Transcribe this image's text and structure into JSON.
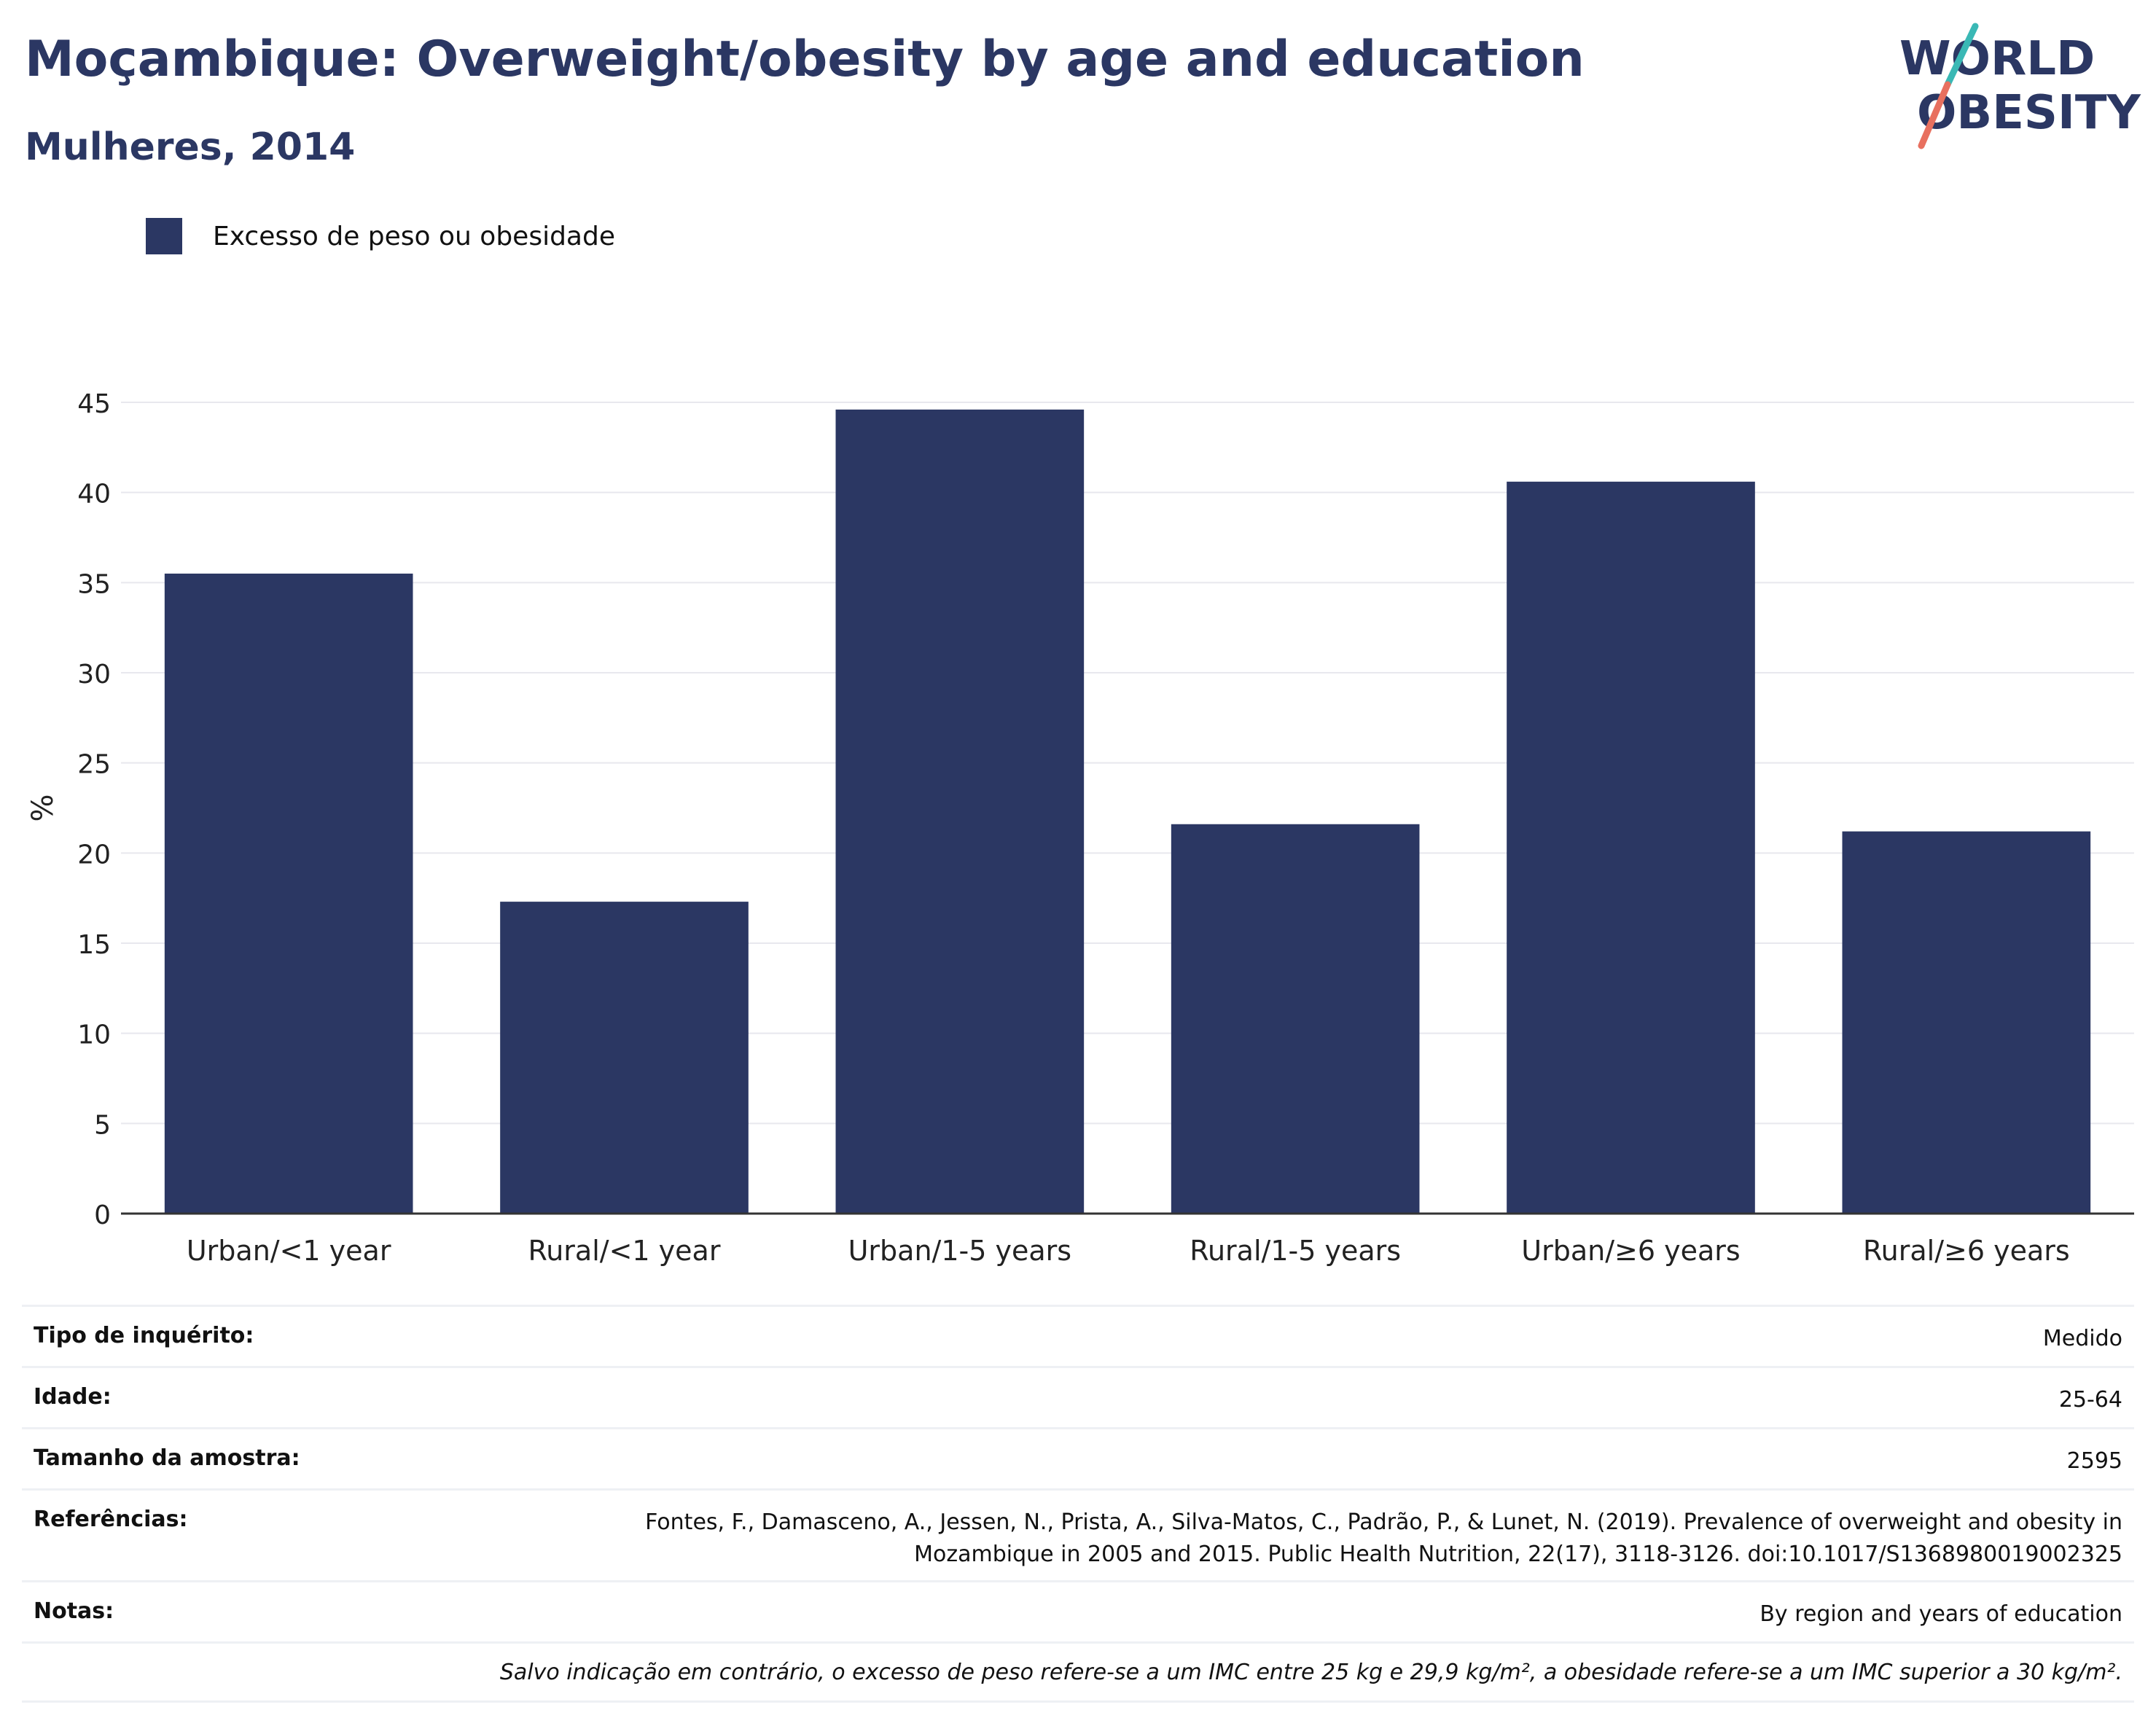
{
  "header": {
    "title": "Moçambique: Overweight/obesity by age and education",
    "subtitle": "Mulheres, 2014"
  },
  "logo": {
    "line1": "WORLD",
    "line2": "OBESITY"
  },
  "colors": {
    "bar": "#2b3763",
    "title": "#2b3763",
    "grid": "#e8e8ee",
    "logo_teal": "#3ab8b5",
    "logo_coral": "#e8705f"
  },
  "chart_data": {
    "type": "bar",
    "categories": [
      "Urban/<1 year",
      "Rural/<1 year",
      "Urban/1-5 years",
      "Rural/1-5 years",
      "Urban/≥6 years",
      "Rural/≥6 years"
    ],
    "series": [
      {
        "name": "Excesso de peso ou obesidade",
        "values": [
          35.5,
          17.3,
          44.6,
          21.6,
          40.6,
          21.2
        ]
      }
    ],
    "ylabel": "%",
    "ylim": [
      0,
      45
    ],
    "yticks": [
      0,
      5,
      10,
      15,
      20,
      25,
      30,
      35,
      40,
      45
    ],
    "grid": true,
    "legend": "top-left"
  },
  "info": {
    "survey_type_label": "Tipo de inquérito:",
    "survey_type_value": "Medido",
    "age_label": "Idade:",
    "age_value": "25-64",
    "sample_label": "Tamanho da amostra:",
    "sample_value": "2595",
    "refs_label": "Referências:",
    "refs_line1": "Fontes, F., Damasceno, A., Jessen, N., Prista, A., Silva-Matos, C., Padrão, P., & Lunet, N. (2019). Prevalence of overweight and obesity in",
    "refs_line2": "Mozambique in 2005 and 2015. Public Health Nutrition, 22(17), 3118-3126. doi:10.1017/S1368980019002325",
    "notes_label": "Notas:",
    "notes_value": "By region and years of education",
    "footnote": "Salvo indicação em contrário, o excesso de peso refere-se a um IMC entre 25 kg e 29,9 kg/m², a obesidade refere-se a um IMC superior a 30 kg/m²."
  }
}
